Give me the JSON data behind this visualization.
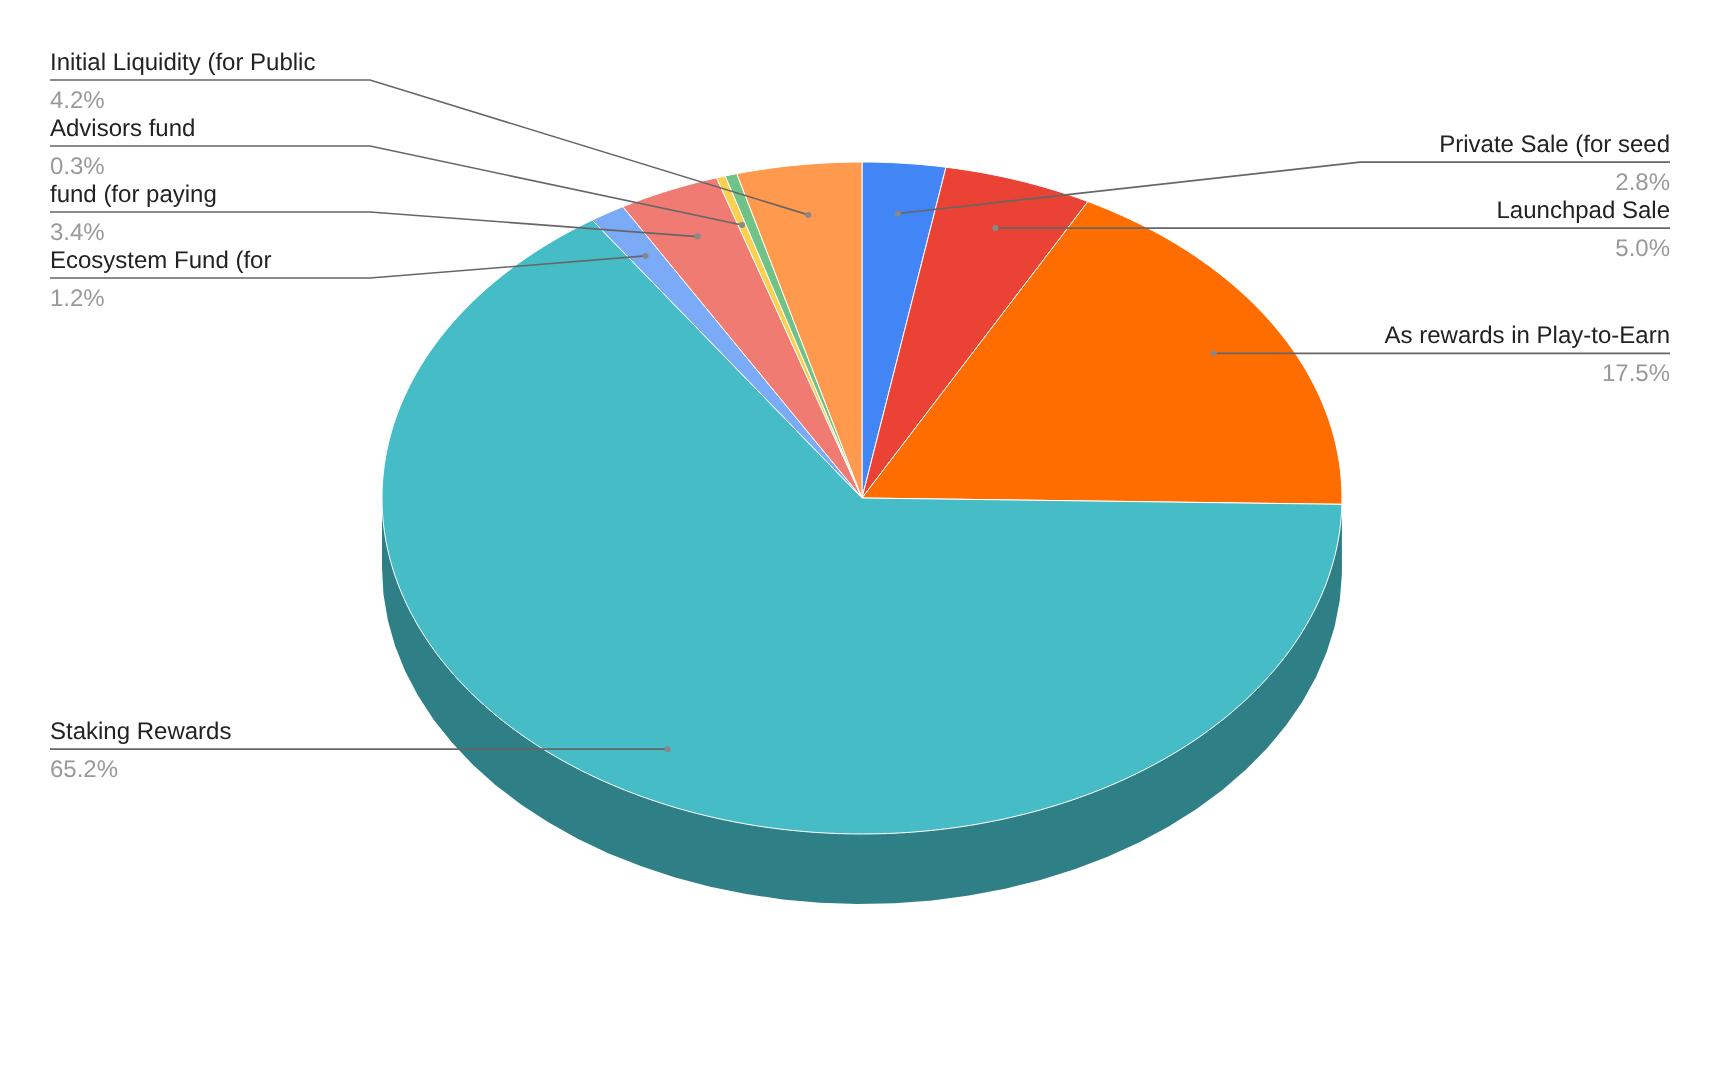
{
  "chart_data": {
    "type": "pie",
    "categories": [
      "Private Sale (for seed",
      "Launchpad Sale",
      "As rewards in Play-to-Earn",
      "Staking Rewards",
      "Ecosystem Fund (for",
      "fund (for paying",
      "Advisors fund",
      null,
      "Initial Liquidity (for Public"
    ],
    "values": [
      2.8,
      5.0,
      17.5,
      65.2,
      1.2,
      3.4,
      0.3,
      0.4,
      4.2
    ],
    "value_labels": [
      "2.8%",
      "5.0%",
      "17.5%",
      "65.2%",
      "1.2%",
      "3.4%",
      "0.3%",
      null,
      "4.2%"
    ],
    "colors": [
      "#4285f4",
      "#ea4335",
      "#ff6d01",
      "#46bdc6",
      "#7baaf7",
      "#f07b72",
      "#fcd04f",
      "#71c287",
      "#ff994d"
    ]
  }
}
